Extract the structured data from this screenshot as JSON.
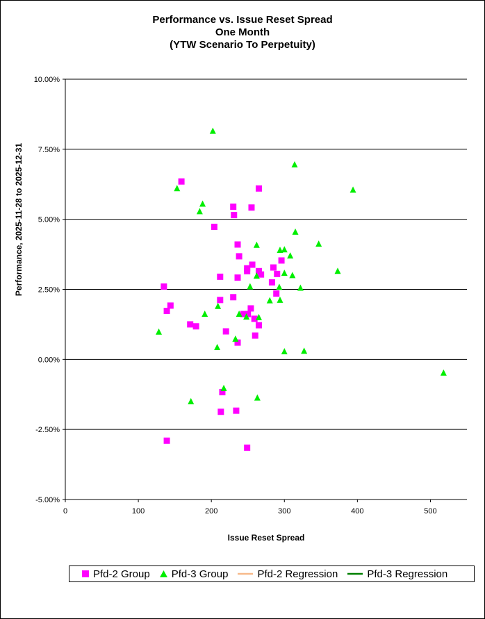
{
  "chart_data": {
    "type": "scatter",
    "title": [
      "Performance vs. Issue Reset Spread",
      "One Month",
      "(YTW Scenario To Perpetuity)"
    ],
    "xlabel": "Issue  Reset Spread",
    "ylabel": "Performance, 2025-11-28  to 2025-12-31",
    "xlim": [
      0,
      550
    ],
    "ylim": [
      -5,
      10
    ],
    "xticks": [
      0,
      100,
      200,
      300,
      400,
      500
    ],
    "yticks": [
      -5,
      -2.5,
      0,
      2.5,
      5,
      7.5,
      10
    ],
    "xtick_labels": [
      "0",
      "100",
      "200",
      "300",
      "400",
      "500"
    ],
    "ytick_labels": [
      "-5.00%",
      "-2.50%",
      "0.00%",
      "2.50%",
      "5.00%",
      "7.50%",
      "10.00%"
    ],
    "grid": "horizontal",
    "legend_position": "bottom",
    "series": [
      {
        "name": "Pfd-2 Group",
        "marker": "square",
        "color": "#ff00ff",
        "points": [
          [
            159,
            6.35
          ],
          [
            265,
            6.1
          ],
          [
            230,
            5.45
          ],
          [
            255,
            5.42
          ],
          [
            231,
            5.15
          ],
          [
            204,
            4.73
          ],
          [
            236,
            4.1
          ],
          [
            238,
            3.68
          ],
          [
            296,
            3.53
          ],
          [
            256,
            3.38
          ],
          [
            285,
            3.28
          ],
          [
            249,
            3.25
          ],
          [
            249,
            3.15
          ],
          [
            265,
            3.15
          ],
          [
            268,
            3.03
          ],
          [
            290,
            3.05
          ],
          [
            212,
            2.95
          ],
          [
            236,
            2.92
          ],
          [
            283,
            2.75
          ],
          [
            135,
            2.6
          ],
          [
            289,
            2.35
          ],
          [
            230,
            2.22
          ],
          [
            212,
            2.12
          ],
          [
            144,
            1.92
          ],
          [
            139,
            1.73
          ],
          [
            254,
            1.82
          ],
          [
            244,
            1.62
          ],
          [
            250,
            1.62
          ],
          [
            259,
            1.45
          ],
          [
            265,
            1.22
          ],
          [
            171,
            1.25
          ],
          [
            179,
            1.18
          ],
          [
            220,
            1.0
          ],
          [
            260,
            0.85
          ],
          [
            236,
            0.6
          ],
          [
            215,
            -1.17
          ],
          [
            213,
            -1.87
          ],
          [
            234,
            -1.83
          ],
          [
            139,
            -2.9
          ],
          [
            249,
            -3.15
          ]
        ]
      },
      {
        "name": "Pfd-3 Group",
        "marker": "triangle",
        "color": "#00ee00",
        "points": [
          [
            202,
            8.15
          ],
          [
            314,
            6.95
          ],
          [
            153,
            6.1
          ],
          [
            394,
            6.05
          ],
          [
            188,
            5.55
          ],
          [
            184,
            5.28
          ],
          [
            315,
            4.55
          ],
          [
            347,
            4.12
          ],
          [
            262,
            4.08
          ],
          [
            300,
            3.92
          ],
          [
            294,
            3.9
          ],
          [
            308,
            3.7
          ],
          [
            373,
            3.15
          ],
          [
            300,
            3.08
          ],
          [
            311,
            3.0
          ],
          [
            262,
            2.98
          ],
          [
            253,
            2.6
          ],
          [
            293,
            2.58
          ],
          [
            322,
            2.55
          ],
          [
            280,
            2.1
          ],
          [
            294,
            2.12
          ],
          [
            209,
            1.9
          ],
          [
            191,
            1.62
          ],
          [
            238,
            1.62
          ],
          [
            248,
            1.52
          ],
          [
            265,
            1.5
          ],
          [
            128,
            0.98
          ],
          [
            233,
            0.73
          ],
          [
            208,
            0.43
          ],
          [
            300,
            0.28
          ],
          [
            327,
            0.3
          ],
          [
            518,
            -0.48
          ],
          [
            217,
            -1.03
          ],
          [
            263,
            -1.37
          ],
          [
            172,
            -1.5
          ]
        ]
      },
      {
        "name": "Pfd-2 Regression",
        "type": "line",
        "color": "#f7b98a",
        "points": []
      },
      {
        "name": "Pfd-3 Regression",
        "type": "line",
        "color": "#007f00",
        "points": []
      }
    ]
  }
}
